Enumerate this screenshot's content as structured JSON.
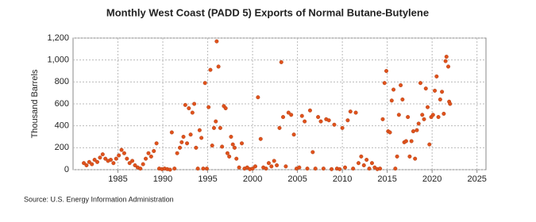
{
  "chart_data": {
    "type": "scatter",
    "title": "Monthly West Coast (PADD 5) Exports of Normal Butane-Butylene",
    "y_label": "Thousand Barrels",
    "source": "Source: U.S. Energy Information Administration",
    "grid": true,
    "xlim": [
      1980,
      2026
    ],
    "xticks": [
      1985,
      1990,
      1995,
      2000,
      2005,
      2010,
      2015,
      2020,
      2025
    ],
    "ylim": [
      0,
      1200
    ],
    "yticks": [
      0,
      200,
      400,
      600,
      800,
      {
        "value": 1000,
        "label": "1,000"
      },
      {
        "value": 1200,
        "label": "1,200"
      }
    ],
    "series": [
      {
        "color": "#e0521c",
        "x": [
          1981.2,
          1981.5,
          1981.8,
          1982.1,
          1982.4,
          1982.7,
          1983.0,
          1983.3,
          1983.6,
          1983.9,
          1984.2,
          1984.5,
          1984.8,
          1985.1,
          1985.4,
          1985.7,
          1986.0,
          1986.3,
          1986.6,
          1986.9,
          1987.2,
          1987.5,
          1987.8,
          1988.1,
          1988.4,
          1988.7,
          1989.0,
          1989.3,
          1989.6,
          1989.9,
          1990.2,
          1990.5,
          1990.8,
          1991.0,
          1991.3,
          1991.6,
          1991.9,
          1992.1,
          1992.3,
          1992.5,
          1992.7,
          1992.9,
          1993.1,
          1993.3,
          1993.5,
          1993.7,
          1993.9,
          1994.1,
          1994.3,
          1994.5,
          1994.7,
          1994.9,
          1995.1,
          1995.3,
          1995.5,
          1995.7,
          1995.9,
          1996.0,
          1996.2,
          1996.4,
          1996.6,
          1996.8,
          1997.0,
          1997.2,
          1997.4,
          1997.6,
          1997.8,
          1998.0,
          1998.2,
          1998.5,
          1998.8,
          1999.1,
          1999.4,
          1999.7,
          2000.0,
          2000.3,
          2000.6,
          2000.9,
          2001.2,
          2001.5,
          2001.8,
          2002.1,
          2002.4,
          2002.7,
          2003.0,
          2003.2,
          2003.4,
          2003.7,
          2004.0,
          2004.3,
          2004.6,
          2004.9,
          2005.2,
          2005.5,
          2005.8,
          2006.1,
          2006.4,
          2006.7,
          2007.0,
          2007.3,
          2007.6,
          2007.9,
          2008.2,
          2008.5,
          2008.8,
          2009.1,
          2009.4,
          2009.7,
          2010.0,
          2010.3,
          2010.6,
          2010.9,
          2011.2,
          2011.5,
          2011.8,
          2012.1,
          2012.4,
          2012.7,
          2013.0,
          2013.3,
          2013.6,
          2013.9,
          2014.2,
          2014.5,
          2014.7,
          2014.9,
          2015.1,
          2015.3,
          2015.5,
          2015.7,
          2015.9,
          2016.1,
          2016.3,
          2016.5,
          2016.7,
          2016.9,
          2017.1,
          2017.3,
          2017.5,
          2017.7,
          2017.9,
          2018.1,
          2018.3,
          2018.5,
          2018.7,
          2018.9,
          2019.1,
          2019.3,
          2019.5,
          2019.7,
          2019.9,
          2020.1,
          2020.3,
          2020.5,
          2020.7,
          2020.9,
          2021.1,
          2021.3,
          2021.5,
          2021.6,
          2021.8,
          2021.9,
          2022.0
        ],
        "values": [
          60,
          40,
          70,
          50,
          90,
          70,
          110,
          140,
          100,
          80,
          90,
          60,
          100,
          130,
          180,
          150,
          100,
          60,
          80,
          40,
          20,
          10,
          50,
          100,
          150,
          120,
          170,
          240,
          10,
          5,
          10,
          5,
          0,
          340,
          10,
          150,
          200,
          250,
          300,
          590,
          240,
          560,
          320,
          520,
          600,
          200,
          10,
          360,
          290,
          10,
          790,
          10,
          570,
          910,
          220,
          380,
          440,
          1170,
          940,
          380,
          210,
          580,
          560,
          150,
          120,
          300,
          230,
          200,
          100,
          20,
          240,
          10,
          20,
          5,
          10,
          30,
          660,
          280,
          20,
          10,
          60,
          30,
          80,
          40,
          380,
          980,
          480,
          30,
          520,
          500,
          320,
          10,
          20,
          490,
          440,
          10,
          540,
          160,
          10,
          480,
          440,
          10,
          460,
          450,
          5,
          410,
          10,
          5,
          380,
          20,
          450,
          530,
          10,
          520,
          60,
          120,
          40,
          90,
          10,
          60,
          20,
          5,
          10,
          460,
          790,
          900,
          350,
          340,
          630,
          730,
          10,
          120,
          500,
          770,
          640,
          250,
          260,
          480,
          120,
          260,
          350,
          100,
          360,
          420,
          790,
          500,
          460,
          740,
          570,
          230,
          480,
          500,
          720,
          850,
          480,
          640,
          710,
          510,
          990,
          1030,
          940,
          620,
          600
        ]
      }
    ]
  }
}
